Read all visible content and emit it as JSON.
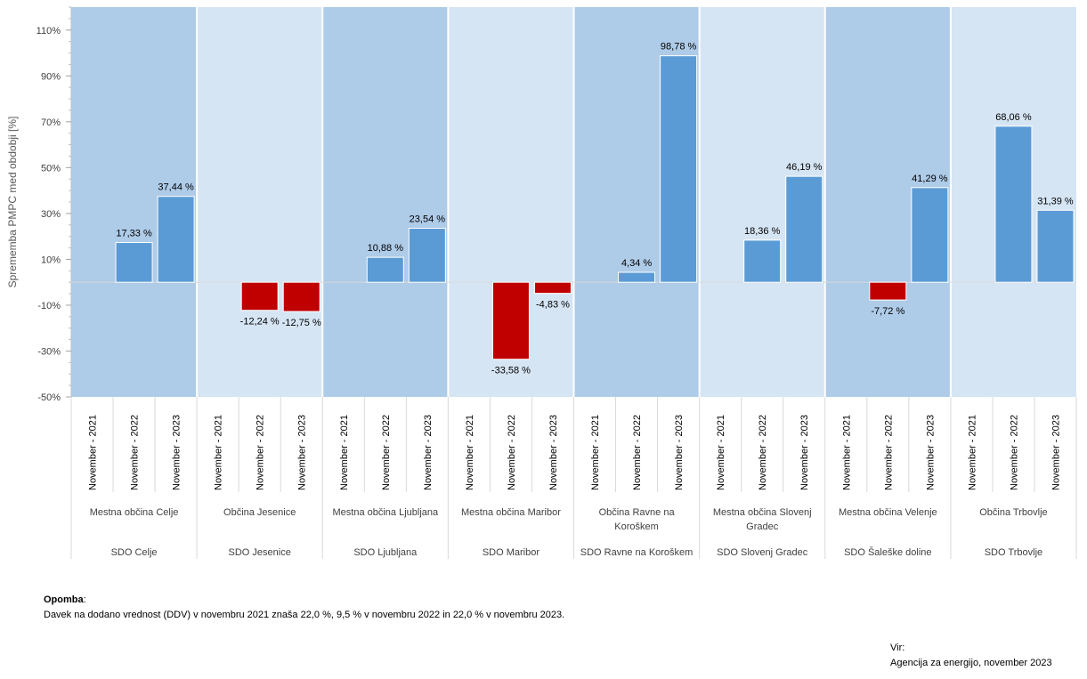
{
  "chart_data": {
    "type": "bar",
    "ylabel": "Sprememba PMPC med obdobji [%]",
    "ylim": [
      -50,
      120
    ],
    "yticks": [
      -50,
      -30,
      -10,
      10,
      30,
      50,
      70,
      90,
      110
    ],
    "ytick_labels": [
      "-50%",
      "-30%",
      "-10%",
      "10%",
      "30%",
      "50%",
      "70%",
      "90%",
      "110%"
    ],
    "periods": [
      "November - 2021",
      "November - 2022",
      "November - 2023"
    ],
    "groups": [
      {
        "sdo": "SDO Celje",
        "municipality": [
          "Mestna občina Celje"
        ],
        "values": [
          null,
          17.33,
          37.44
        ],
        "labels": [
          "",
          "17,33 %",
          "37,44 %"
        ]
      },
      {
        "sdo": "SDO Jesenice",
        "municipality": [
          "Občina Jesenice"
        ],
        "values": [
          null,
          -12.24,
          -12.75
        ],
        "labels": [
          "",
          "-12,24 %",
          "-12,75 %"
        ]
      },
      {
        "sdo": "SDO Ljubljana",
        "municipality": [
          "Mestna občina Ljubljana"
        ],
        "values": [
          null,
          10.88,
          23.54
        ],
        "labels": [
          "",
          "10,88 %",
          "23,54 %"
        ]
      },
      {
        "sdo": "SDO Maribor",
        "municipality": [
          "Mestna občina Maribor"
        ],
        "values": [
          null,
          -33.58,
          -4.83
        ],
        "labels": [
          "",
          "-33,58 %",
          "-4,83 %"
        ]
      },
      {
        "sdo": "SDO Ravne na Koroškem",
        "municipality": [
          "Občina Ravne na",
          "Koroškem"
        ],
        "values": [
          null,
          4.34,
          98.78
        ],
        "labels": [
          "",
          "4,34 %",
          "98,78 %"
        ]
      },
      {
        "sdo": "SDO Slovenj Gradec",
        "municipality": [
          "Mestna občina Slovenj",
          "Gradec"
        ],
        "values": [
          null,
          18.36,
          46.19
        ],
        "labels": [
          "",
          "18,36 %",
          "46,19 %"
        ]
      },
      {
        "sdo": "SDO Šaleške doline",
        "municipality": [
          "Mestna občina Velenje"
        ],
        "values": [
          null,
          -7.72,
          41.29
        ],
        "labels": [
          "",
          "-7,72 %",
          "41,29 %"
        ]
      },
      {
        "sdo": "SDO Trbovlje",
        "municipality": [
          "Občina Trbovlje"
        ],
        "values": [
          null,
          68.06,
          31.39
        ],
        "labels": [
          "",
          "68,06 %",
          "31,39 %"
        ]
      }
    ],
    "grid": false,
    "colors": {
      "positive": "#5b9bd5",
      "negative": "#c00000",
      "band_dark": "#aecbe8",
      "band_light": "#d6e5f4",
      "axis": "#bfbfbf"
    }
  },
  "note": {
    "title": "Opomba",
    "text": "Davek na dodano vrednost (DDV) v novembru 2021 znaša 22,0 %, 9,5 % v novembru 2022 in 22,0 % v novembru 2023."
  },
  "source": {
    "title": "Vir:",
    "text": "Agencija za energijo, november 2023"
  }
}
